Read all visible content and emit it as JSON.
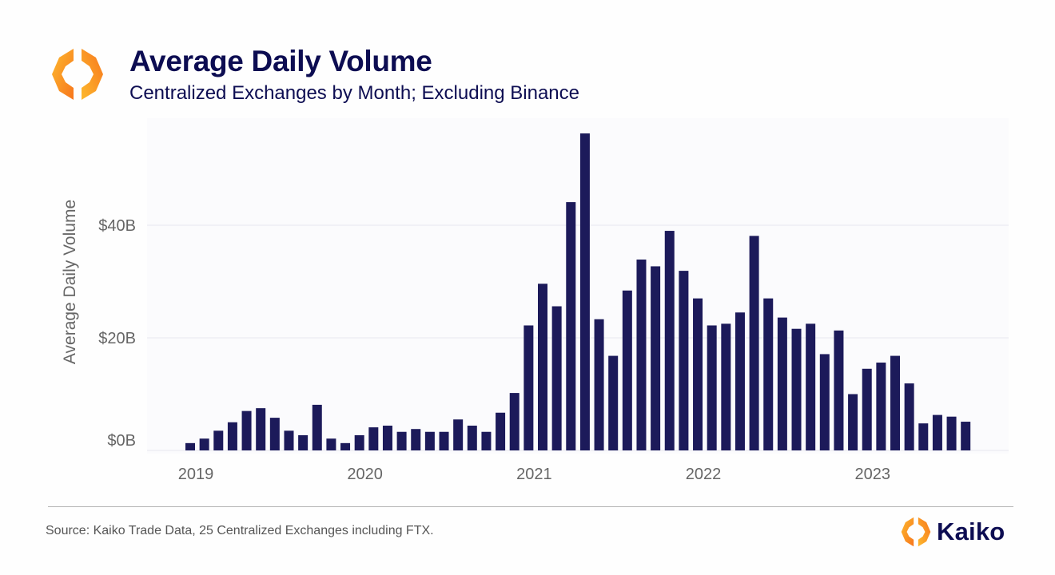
{
  "header": {
    "title": "Average Daily Volume",
    "subtitle": "Centralized Exchanges by Month; Excluding Binance",
    "logo_icon": "kaiko-hexagon-logo-icon"
  },
  "footer": {
    "source": "Source: Kaiko Trade Data, 25 Centralized Exchanges including FTX.",
    "brand_name": "Kaiko",
    "brand_icon": "kaiko-hexagon-logo-icon"
  },
  "colors": {
    "bar": "#1c1a5a",
    "title": "#0d0d52",
    "axis_text": "#666666",
    "grid": "#eeeef3",
    "panel": "#fbfbfd",
    "logo_light": "#fdb92e",
    "logo_dark": "#f7761d"
  },
  "chart_data": {
    "type": "bar",
    "title": "Average Daily Volume",
    "subtitle": "Centralized Exchanges by Month; Excluding Binance",
    "xlabel": "",
    "ylabel": "Average Daily Volume",
    "ylim": [
      0,
      58
    ],
    "y_ticks": [
      {
        "value": 0,
        "label": "$0B"
      },
      {
        "value": 20,
        "label": "$20B"
      },
      {
        "value": 40,
        "label": "$40B"
      }
    ],
    "x_ticks": [
      {
        "month_index": 0,
        "label": "2019"
      },
      {
        "month_index": 12,
        "label": "2020"
      },
      {
        "month_index": 24,
        "label": "2021"
      },
      {
        "month_index": 36,
        "label": "2022"
      },
      {
        "month_index": 48,
        "label": "2023"
      }
    ],
    "grid": true,
    "legend": "none",
    "units": "USD billions",
    "categories": [
      "2019-01",
      "2019-02",
      "2019-03",
      "2019-04",
      "2019-05",
      "2019-06",
      "2019-07",
      "2019-08",
      "2019-09",
      "2019-10",
      "2019-11",
      "2019-12",
      "2020-01",
      "2020-02",
      "2020-03",
      "2020-04",
      "2020-05",
      "2020-06",
      "2020-07",
      "2020-08",
      "2020-09",
      "2020-10",
      "2020-11",
      "2020-12",
      "2021-01",
      "2021-02",
      "2021-03",
      "2021-04",
      "2021-05",
      "2021-06",
      "2021-07",
      "2021-08",
      "2021-09",
      "2021-10",
      "2021-11",
      "2021-12",
      "2022-01",
      "2022-02",
      "2022-03",
      "2022-04",
      "2022-05",
      "2022-06",
      "2022-07",
      "2022-08",
      "2022-09",
      "2022-10",
      "2022-11",
      "2022-12",
      "2023-01",
      "2023-02",
      "2023-03",
      "2023-04",
      "2023-05",
      "2023-06",
      "2023-07",
      "2023-08"
    ],
    "values": [
      1.3,
      2.1,
      3.5,
      5.0,
      7.0,
      7.5,
      5.8,
      3.5,
      2.7,
      8.1,
      2.1,
      1.3,
      2.7,
      4.1,
      4.4,
      3.3,
      3.8,
      3.3,
      3.3,
      5.5,
      4.4,
      3.3,
      6.7,
      10.2,
      22.2,
      29.6,
      25.6,
      44.1,
      56.3,
      23.3,
      16.8,
      28.4,
      33.9,
      32.7,
      39.0,
      31.9,
      27.0,
      22.2,
      22.5,
      24.5,
      38.1,
      27.0,
      23.6,
      21.6,
      22.5,
      17.1,
      21.3,
      10.0,
      14.5,
      15.6,
      16.8,
      11.9,
      4.8,
      6.3,
      6.0,
      5.1
    ]
  }
}
